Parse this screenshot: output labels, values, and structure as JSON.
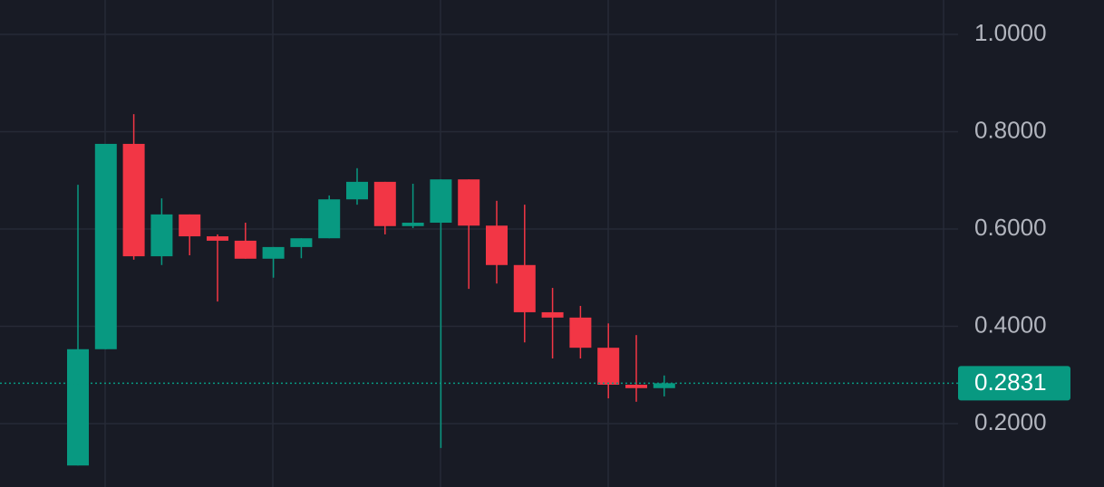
{
  "chart_data": {
    "type": "candlestick",
    "open": [
      0.114,
      0.353,
      0.775,
      0.544,
      0.63,
      0.585,
      0.576,
      0.539,
      0.563,
      0.581,
      0.661,
      0.697,
      0.606,
      0.613,
      0.702,
      0.607,
      0.526,
      0.429,
      0.418,
      0.356,
      0.28,
      0.273
    ],
    "high": [
      0.691,
      0.775,
      0.836,
      0.663,
      0.63,
      0.589,
      0.613,
      0.563,
      0.581,
      0.669,
      0.725,
      0.697,
      0.693,
      0.702,
      0.702,
      0.658,
      0.65,
      0.479,
      0.442,
      0.406,
      0.382,
      0.299
    ],
    "low": [
      0.114,
      0.353,
      0.537,
      0.526,
      0.546,
      0.451,
      0.539,
      0.5,
      0.54,
      0.581,
      0.65,
      0.589,
      0.602,
      0.15,
      0.477,
      0.488,
      0.367,
      0.334,
      0.334,
      0.252,
      0.245,
      0.256
    ],
    "close": [
      0.353,
      0.775,
      0.544,
      0.63,
      0.585,
      0.576,
      0.539,
      0.563,
      0.581,
      0.661,
      0.697,
      0.606,
      0.613,
      0.702,
      0.607,
      0.526,
      0.429,
      0.418,
      0.356,
      0.28,
      0.273,
      0.2831
    ],
    "up_color": "#089981",
    "down_color": "#f23645",
    "ylim": [
      0.0698,
      1.0707
    ],
    "yticks": [
      {
        "value": 0.2,
        "label": "0.2000"
      },
      {
        "value": 0.4,
        "label": "0.4000"
      },
      {
        "value": 0.6,
        "label": "0.6000"
      },
      {
        "value": 0.8,
        "label": "0.8000"
      },
      {
        "value": 1,
        "label": "1.0000"
      }
    ],
    "grid": true,
    "last_price": 0.2831
  }
}
